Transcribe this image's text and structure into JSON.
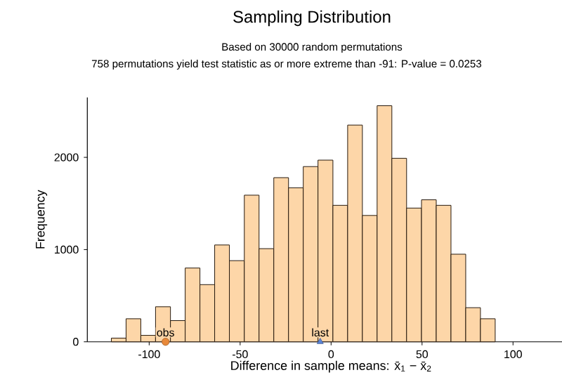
{
  "chart_data": {
    "type": "histogram",
    "title": "Sampling Distribution",
    "subtitle": "Based on 30000 random permutations",
    "annotations": [
      "758 permutations yield test statistic as or more extreme than -91: P-value = 0.0253"
    ],
    "xlabel": "Difference in sample means: x̄$_{1}$ − x̄$_{2}$",
    "ylabel": "Frequency",
    "bins": [
      -120.8,
      -112.7,
      -104.6,
      -96.5,
      -88.3,
      -80.2,
      -72.1,
      -64.0,
      -55.9,
      -47.7,
      -39.6,
      -31.5,
      -23.4,
      -15.3,
      -7.2,
      1.0,
      9.1,
      17.2,
      25.3,
      33.4,
      41.5,
      49.7,
      57.8,
      65.9,
      74.0,
      82.1,
      90.2
    ],
    "values": [
      40,
      250,
      70,
      380,
      230,
      800,
      620,
      1050,
      880,
      1590,
      1010,
      1780,
      1670,
      1900,
      1970,
      1480,
      2350,
      1370,
      2560,
      1990,
      1450,
      1540,
      1480,
      950,
      370,
      250
    ],
    "color": "#fdd6a8",
    "series": [
      {
        "type": "scatter",
        "name": "obs",
        "x": [
          -91
        ],
        "values": [
          0
        ],
        "color": "#e8893a",
        "marker": "circle"
      },
      {
        "type": "scatter",
        "name": "last",
        "x": [
          -6
        ],
        "values": [
          0
        ],
        "color": "#5b84d6",
        "marker": "triangle"
      }
    ],
    "xlim": [
      -134,
      134
    ],
    "ylim": [
      0,
      2650
    ],
    "xticks": [
      -100,
      -50,
      0,
      50,
      100
    ],
    "yticks": [
      0,
      1000,
      2000
    ],
    "grid": false
  }
}
